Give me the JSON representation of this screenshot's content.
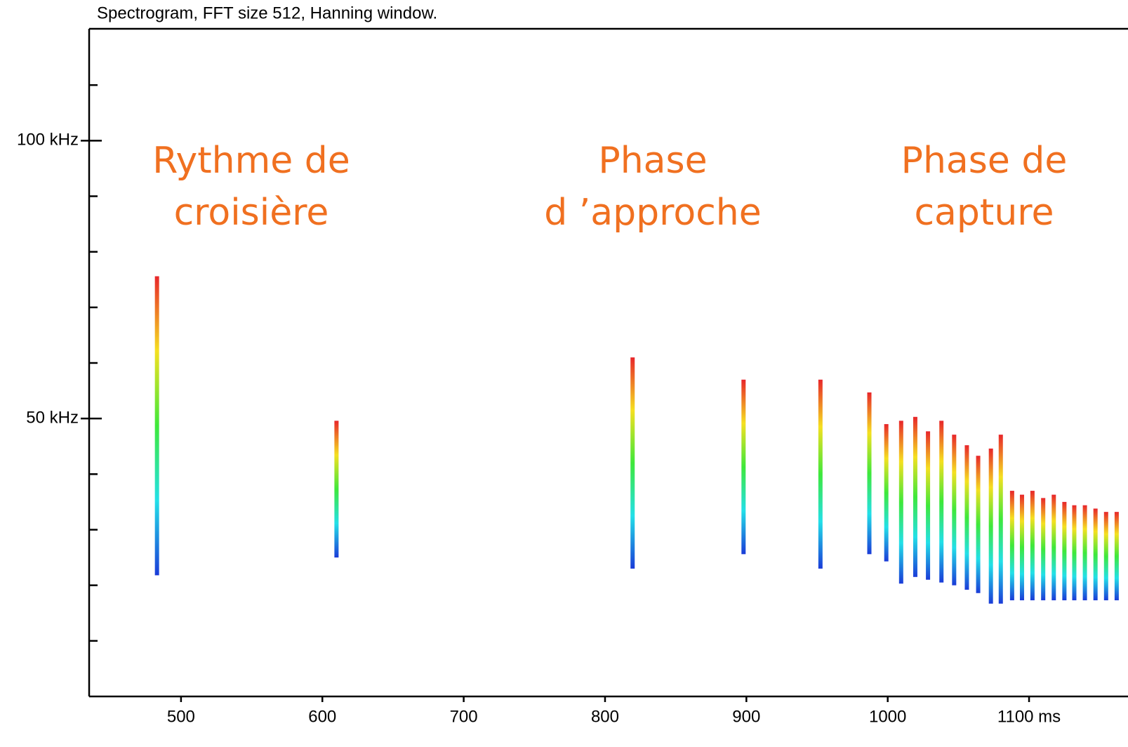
{
  "chart_data": {
    "type": "spectrogram",
    "title": "Spectrogram, FFT size 512, Hanning window.",
    "annotations": [
      [
        "Rythme de",
        "croisière"
      ],
      [
        "Phase",
        "d ’approche"
      ],
      [
        "Phase de",
        "capture"
      ]
    ],
    "calls": {
      "time": [
        483,
        610,
        819.5,
        898,
        952.4,
        987,
        999,
        1009.5,
        1019.5,
        1028.5,
        1038,
        1047,
        1056,
        1064,
        1073,
        1080,
        1088,
        1095,
        1102.4,
        1110,
        1117.5,
        1125,
        1132,
        1139.5,
        1147,
        1154.5,
        1162
      ],
      "fmax": [
        75.6,
        49.6,
        61,
        57,
        57,
        54.7,
        49,
        49.6,
        50.3,
        47.7,
        49.6,
        47.1,
        45.2,
        43.3,
        44.6,
        47.1,
        37,
        36.3,
        37,
        35.7,
        36.3,
        35,
        34.4,
        34.4,
        33.8,
        33.2,
        33.2
      ],
      "fmin": [
        21.8,
        25,
        23,
        25.6,
        23,
        25.6,
        24.3,
        20.3,
        21.5,
        21,
        20.5,
        20,
        19.2,
        18.6,
        16.7,
        16.7,
        17.3,
        17.3,
        17.3,
        17.3,
        17.3,
        17.3,
        17.3,
        17.3,
        17.3,
        17.3,
        17.3
      ]
    },
    "colors": [
      "#e8262a",
      "#f5e020",
      "#3ee83a",
      "#22e0e8",
      "#1a3bd8"
    ],
    "annotation_color": "#f07020",
    "xlim": [
      435,
      1170
    ],
    "xticks": [
      500,
      600,
      700,
      800,
      900,
      1000,
      {
        "value": 1100,
        "label": "1100 ms"
      }
    ],
    "ylim": [
      0,
      120
    ],
    "yticks": [
      {
        "value": 50,
        "label": "50 kHz"
      },
      {
        "value": 100,
        "label": "100 kHz"
      }
    ],
    "yminor_ticks": [
      10,
      20,
      30,
      40,
      60,
      70,
      80,
      90,
      110
    ]
  }
}
